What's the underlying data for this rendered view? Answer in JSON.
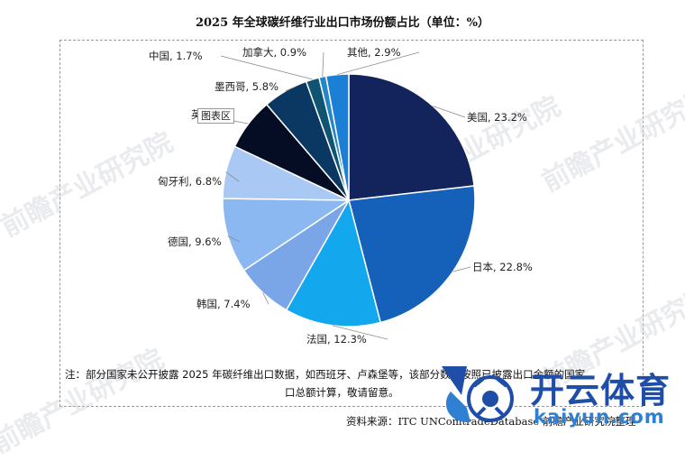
{
  "title": "2025 年全球碳纤维行业出口市场份额占比（单位：%）",
  "chart_data": {
    "type": "pie",
    "title": "2025 年全球碳纤维行业出口市场份额占比（单位：%）",
    "slices": [
      {
        "label": "美国",
        "value": 23.2,
        "color": "#13245c"
      },
      {
        "label": "日本",
        "value": 22.8,
        "color": "#1560b8"
      },
      {
        "label": "法国",
        "value": 12.3,
        "color": "#13a8ee"
      },
      {
        "label": "韩国",
        "value": 7.4,
        "color": "#7aa6e8"
      },
      {
        "label": "德国",
        "value": 9.6,
        "color": "#8bb8f0"
      },
      {
        "label": "匈牙利",
        "value": 6.8,
        "color": "#a9c9f4"
      },
      {
        "label": "英国",
        "value": 6.7,
        "color": "#050d24"
      },
      {
        "label": "墨西哥",
        "value": 5.8,
        "color": "#0b3763"
      },
      {
        "label": "中国",
        "value": 1.7,
        "color": "#0f5470"
      },
      {
        "label": "加拿大",
        "value": 0.9,
        "color": "#2486c9"
      },
      {
        "label": "其他",
        "value": 2.9,
        "color": "#1b7fd6"
      }
    ],
    "label_texts": [
      "美国, 23.2%",
      "日本, 22.8%",
      "法国, 12.3%",
      "韩国, 7.4%",
      "德国, 9.6%",
      "匈牙利, 6.8%",
      "英",
      "墨西哥, 5.8%",
      "中国, 1.7%",
      "加拿大, 0.9%",
      "其他, 2.9%"
    ]
  },
  "tooltip": "图表区",
  "note_line1": "注：部分国家未公开披露 2025 年碳纤维出口数据，如西班牙、卢森堡等，该部分数据按照已披露出口金额的国家",
  "note_line2": "口总额计算，敬请留意。",
  "source": "资料来源：ITC UNComtradeDatabase 前瞻产业研究院整理",
  "watermark": "前瞻产业研究院",
  "brand_main": "开云体育",
  "brand_sub": "kaiyun.com"
}
